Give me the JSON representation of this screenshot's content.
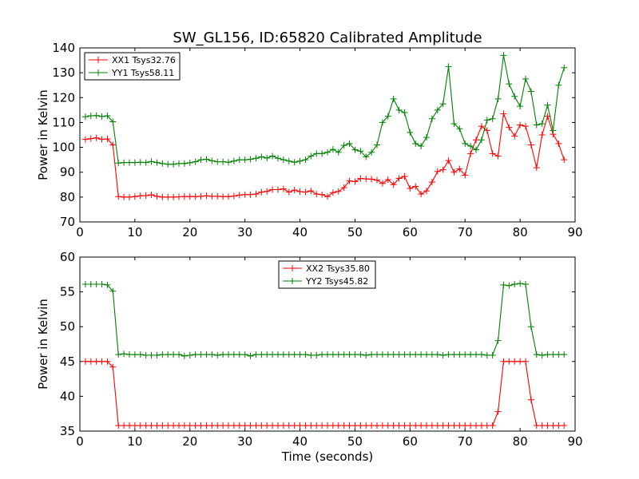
{
  "chart_data": [
    {
      "type": "line",
      "title": "SW_GL156, ID:65820 Calibrated Amplitude",
      "xlabel": "",
      "ylabel": "Power in Kelvin",
      "xlim": [
        0,
        90
      ],
      "ylim": [
        70,
        140
      ],
      "xticks": [
        0,
        10,
        20,
        30,
        40,
        50,
        60,
        70,
        80,
        90
      ],
      "yticks": [
        70,
        80,
        90,
        100,
        110,
        120,
        130,
        140
      ],
      "legend_position": "upper-left",
      "grid": false,
      "series": [
        {
          "name": "XX1 Tsys32.76",
          "color": "#ff0000",
          "marker": "plus",
          "x": [
            1,
            2,
            3,
            4,
            5,
            6,
            7,
            8,
            9,
            10,
            11,
            12,
            13,
            14,
            15,
            16,
            17,
            18,
            19,
            20,
            21,
            22,
            23,
            24,
            25,
            26,
            27,
            28,
            29,
            30,
            31,
            32,
            33,
            34,
            35,
            36,
            37,
            38,
            39,
            40,
            41,
            42,
            43,
            44,
            45,
            46,
            47,
            48,
            49,
            50,
            51,
            52,
            53,
            54,
            55,
            56,
            57,
            58,
            59,
            60,
            61,
            62,
            63,
            64,
            65,
            66,
            67,
            68,
            69,
            70,
            71,
            72,
            73,
            74,
            75,
            76,
            77,
            78,
            79,
            80,
            81,
            82,
            83,
            84,
            85,
            86,
            87,
            88
          ],
          "values": [
            103.2,
            103.5,
            103.8,
            103.2,
            103.4,
            101,
            80.2,
            80,
            80,
            80.2,
            80.5,
            80.6,
            80.9,
            80.3,
            80,
            80,
            80,
            80.1,
            80.2,
            80.2,
            80.2,
            80.3,
            80.5,
            80.3,
            80.3,
            80.2,
            80.2,
            80.4,
            80.8,
            81,
            81,
            81.2,
            82,
            82.3,
            83,
            83,
            83.3,
            82,
            82.8,
            82.2,
            82,
            82.5,
            81.2,
            81,
            80.2,
            81.8,
            82.3,
            83.8,
            86.5,
            86.2,
            87.5,
            87.3,
            87.2,
            86.8,
            85.5,
            87,
            85,
            87.5,
            88.3,
            83.5,
            84.3,
            81.2,
            82.5,
            86,
            90.3,
            91,
            94.7,
            90,
            91.3,
            88.8,
            97.5,
            103,
            108.5,
            106.8,
            97.5,
            96.5,
            113.5,
            108,
            104.5,
            109,
            108.5,
            101,
            91.8,
            105,
            112.5,
            105.3,
            101.5,
            95
          ]
        },
        {
          "name": "YY1 Tsys58.11",
          "color": "#008000",
          "marker": "plus",
          "x": [
            1,
            2,
            3,
            4,
            5,
            6,
            7,
            8,
            9,
            10,
            11,
            12,
            13,
            14,
            15,
            16,
            17,
            18,
            19,
            20,
            21,
            22,
            23,
            24,
            25,
            26,
            27,
            28,
            29,
            30,
            31,
            32,
            33,
            34,
            35,
            36,
            37,
            38,
            39,
            40,
            41,
            42,
            43,
            44,
            45,
            46,
            47,
            48,
            49,
            50,
            51,
            52,
            53,
            54,
            55,
            56,
            57,
            58,
            59,
            60,
            61,
            62,
            63,
            64,
            65,
            66,
            67,
            68,
            69,
            70,
            71,
            72,
            73,
            74,
            75,
            76,
            77,
            78,
            79,
            80,
            81,
            82,
            83,
            84,
            85,
            86,
            87,
            88
          ],
          "values": [
            112.3,
            112.7,
            112.8,
            112.4,
            112.7,
            110.3,
            93.7,
            93.9,
            93.9,
            93.9,
            94,
            93.9,
            94.3,
            93.9,
            93.5,
            93.2,
            93.2,
            93.5,
            93.5,
            93.8,
            94.2,
            95,
            95.2,
            94.6,
            94.2,
            94.2,
            94,
            94.5,
            95,
            95,
            95.2,
            95.6,
            96.2,
            95.7,
            96.5,
            95.6,
            95,
            94.5,
            94,
            94.5,
            95,
            96.5,
            97.5,
            97.5,
            98,
            99.2,
            98,
            100.8,
            101.5,
            99,
            98.5,
            96.2,
            98,
            101,
            110,
            112.5,
            119.5,
            115,
            114,
            106,
            101.5,
            100.5,
            104,
            111.5,
            115,
            117.5,
            132.5,
            109.5,
            107.5,
            101.5,
            100.5,
            99,
            103,
            111,
            111.5,
            119.5,
            137,
            125.5,
            120.5,
            116.5,
            127.5,
            122.5,
            109,
            109.5,
            117,
            106.8,
            125,
            132
          ]
        }
      ]
    },
    {
      "type": "line",
      "title": "",
      "xlabel": "Time (seconds)",
      "ylabel": "Power in Kelvin",
      "xlim": [
        0,
        90
      ],
      "ylim": [
        35,
        60
      ],
      "xticks": [
        0,
        10,
        20,
        30,
        40,
        50,
        60,
        70,
        80,
        90
      ],
      "yticks": [
        35,
        40,
        45,
        50,
        55,
        60
      ],
      "legend_position": "upper-center",
      "grid": false,
      "series": [
        {
          "name": "XX2 Tsys35.80",
          "color": "#ff0000",
          "marker": "plus",
          "x": [
            1,
            2,
            3,
            4,
            5,
            6,
            7,
            8,
            9,
            10,
            11,
            12,
            13,
            14,
            15,
            16,
            17,
            18,
            19,
            20,
            21,
            22,
            23,
            24,
            25,
            26,
            27,
            28,
            29,
            30,
            31,
            32,
            33,
            34,
            35,
            36,
            37,
            38,
            39,
            40,
            41,
            42,
            43,
            44,
            45,
            46,
            47,
            48,
            49,
            50,
            51,
            52,
            53,
            54,
            55,
            56,
            57,
            58,
            59,
            60,
            61,
            62,
            63,
            64,
            65,
            66,
            67,
            68,
            69,
            70,
            71,
            72,
            73,
            74,
            75,
            76,
            77,
            78,
            79,
            80,
            81,
            82,
            83,
            84,
            85,
            86,
            87,
            88
          ],
          "values": [
            45,
            45,
            45,
            45,
            45,
            44.2,
            35.8,
            35.8,
            35.8,
            35.8,
            35.8,
            35.8,
            35.8,
            35.8,
            35.8,
            35.8,
            35.8,
            35.8,
            35.8,
            35.8,
            35.8,
            35.8,
            35.8,
            35.8,
            35.8,
            35.8,
            35.8,
            35.8,
            35.8,
            35.8,
            35.8,
            35.8,
            35.8,
            35.8,
            35.8,
            35.8,
            35.8,
            35.8,
            35.8,
            35.8,
            35.8,
            35.8,
            35.8,
            35.8,
            35.8,
            35.8,
            35.8,
            35.8,
            35.8,
            35.8,
            35.8,
            35.8,
            35.8,
            35.8,
            35.8,
            35.8,
            35.8,
            35.8,
            35.8,
            35.8,
            35.8,
            35.8,
            35.8,
            35.8,
            35.8,
            35.8,
            35.8,
            35.8,
            35.8,
            35.8,
            35.8,
            35.8,
            35.8,
            35.8,
            35.8,
            37.8,
            45,
            45,
            45,
            45,
            45,
            39.5,
            35.8,
            35.8,
            35.8,
            35.8,
            35.8,
            35.8
          ]
        },
        {
          "name": "YY2 Tsys45.82",
          "color": "#008000",
          "marker": "plus",
          "x": [
            1,
            2,
            3,
            4,
            5,
            6,
            7,
            8,
            9,
            10,
            11,
            12,
            13,
            14,
            15,
            16,
            17,
            18,
            19,
            20,
            21,
            22,
            23,
            24,
            25,
            26,
            27,
            28,
            29,
            30,
            31,
            32,
            33,
            34,
            35,
            36,
            37,
            38,
            39,
            40,
            41,
            42,
            43,
            44,
            45,
            46,
            47,
            48,
            49,
            50,
            51,
            52,
            53,
            54,
            55,
            56,
            57,
            58,
            59,
            60,
            61,
            62,
            63,
            64,
            65,
            66,
            67,
            68,
            69,
            70,
            71,
            72,
            73,
            74,
            75,
            76,
            77,
            78,
            79,
            80,
            81,
            82,
            83,
            84,
            85,
            86,
            87,
            88
          ],
          "values": [
            56.1,
            56.1,
            56.1,
            56.1,
            56,
            55.1,
            46,
            46.1,
            46,
            46,
            46,
            45.9,
            45.9,
            45.9,
            46,
            46,
            46,
            46,
            45.8,
            45.9,
            46,
            46,
            46,
            46,
            45.9,
            46,
            46,
            46,
            46,
            46,
            45.8,
            46,
            46,
            46,
            46,
            46,
            46,
            46,
            46,
            46,
            46,
            45.9,
            45.9,
            46,
            46,
            46,
            46,
            46,
            46,
            46,
            46,
            45.9,
            46,
            46,
            46,
            46,
            46,
            46,
            46,
            46,
            46,
            46,
            46,
            46,
            46,
            45.9,
            46,
            46,
            46,
            46,
            46,
            46,
            46,
            45.9,
            45.9,
            48,
            56,
            55.9,
            56.1,
            56.2,
            56.1,
            50,
            46,
            45.9,
            46,
            46,
            46,
            46
          ]
        }
      ]
    }
  ]
}
